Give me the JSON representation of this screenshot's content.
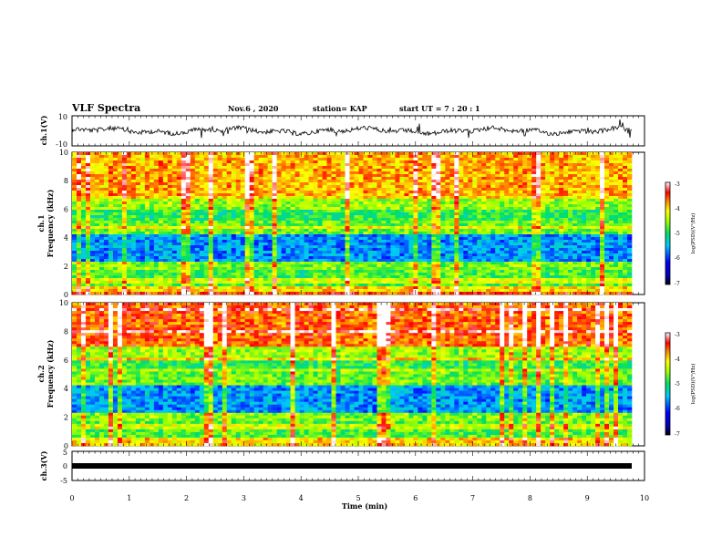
{
  "header": {
    "title": "VLF Spectra",
    "date": "Nov.6 , 2020",
    "station": "station= KAP",
    "start": "start UT = 7 : 20 : 1"
  },
  "chart_data": [
    {
      "type": "line",
      "panel": "ch1-waveform",
      "ylabel": "ch.1(V)",
      "ylim": [
        -10,
        10
      ],
      "yticks": [
        "10",
        "-10"
      ],
      "xlim": [
        0,
        10
      ]
    },
    {
      "type": "heatmap",
      "panel": "ch1-spectrogram",
      "ylabel": "ch.1\nFrequency (kHz)",
      "ylim": [
        0,
        10
      ],
      "yticks": [
        "0",
        "2",
        "4",
        "6",
        "8",
        "10"
      ],
      "xlim": [
        0,
        10
      ],
      "colorbar": {
        "label": "log(PSD)(V²/Hz)",
        "range": [
          -7,
          -3
        ],
        "ticks": [
          "-3",
          "-4",
          "-5",
          "-6",
          "-7"
        ]
      }
    },
    {
      "type": "heatmap",
      "panel": "ch2-spectrogram",
      "ylabel": "ch.2\nFrequency (kHz)",
      "ylim": [
        0,
        10
      ],
      "yticks": [
        "0",
        "2",
        "4",
        "6",
        "8",
        "10"
      ],
      "xlim": [
        0,
        10
      ],
      "colorbar": {
        "label": "log(PSD)(V²/Hz)",
        "range": [
          -7,
          -3
        ],
        "ticks": [
          "-3",
          "-4",
          "-5",
          "-6",
          "-7"
        ]
      }
    },
    {
      "type": "line",
      "panel": "ch3-waveform",
      "ylabel": "ch.3(V)",
      "ylim": [
        -5,
        5
      ],
      "yticks": [
        "5",
        "0",
        "-5"
      ],
      "xlim": [
        0,
        10
      ],
      "xlabel": "Time (min)",
      "xticks": [
        "0",
        "1",
        "2",
        "3",
        "4",
        "5",
        "6",
        "7",
        "8",
        "9",
        "10"
      ]
    }
  ]
}
